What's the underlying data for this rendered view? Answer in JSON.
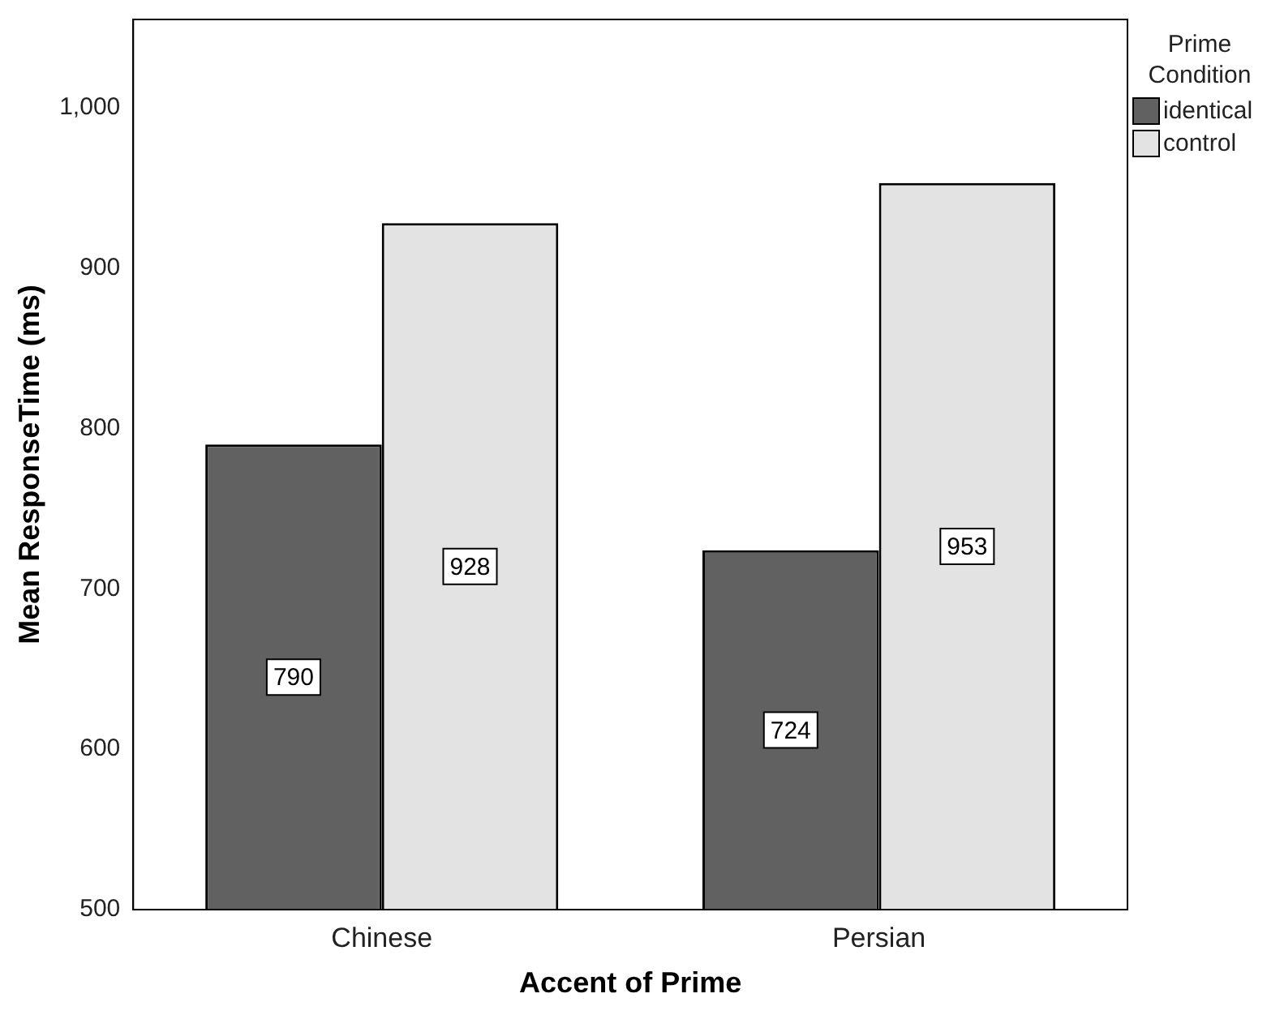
{
  "chart_data": {
    "type": "bar",
    "xlabel": "Accent of Prime",
    "ylabel": "Mean ResponseTime (ms)",
    "legend_title": "Prime Condition",
    "categories": [
      "Chinese",
      "Persian"
    ],
    "series": [
      {
        "name": "identical",
        "color": "#616161",
        "values": [
          790,
          724
        ]
      },
      {
        "name": "control",
        "color": "#e3e3e3",
        "values": [
          928,
          953
        ]
      }
    ],
    "ylim": [
      500,
      1055
    ],
    "yticks": [
      500,
      600,
      700,
      800,
      900,
      {
        "value": 1000,
        "label": "1,000"
      }
    ],
    "grid": false,
    "legend": "right",
    "data_labels": true
  }
}
